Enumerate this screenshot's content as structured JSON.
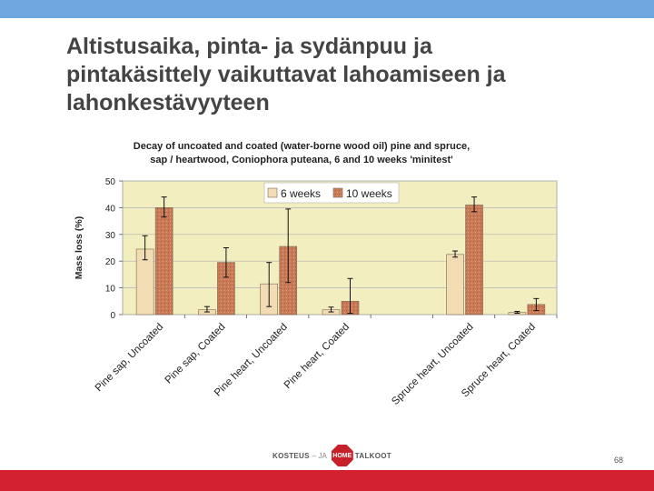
{
  "slide": {
    "title_lines": [
      "Altistusaika, pinta- ja sydänpuu ja",
      "pintakäsittely vaikuttavat lahoamiseen ja",
      "lahonkestävyyteen"
    ],
    "page_number": "68"
  },
  "logo": {
    "left_text": "KOSTEUS",
    "sep": "– JA",
    "badge_text": "HOME",
    "right_text": "TALKOOT"
  },
  "colors": {
    "top_bar": "#6fa8e0",
    "bottom_bar": "#d2202f",
    "plot_bg": "#f3eebf",
    "series_6": "#f1dcb4",
    "series_10": "#c97a57",
    "title_text": "#444444"
  },
  "chart_data": {
    "type": "bar",
    "title_lines": [
      "Decay of uncoated and coated (water-borne wood oil) pine and spruce,",
      "sap / heartwood,  Coniophora puteana, 6 and 10 weeks 'minitest'"
    ],
    "xlabel": "",
    "ylabel": "Mass loss (%)",
    "ylim": [
      0,
      50
    ],
    "yticks": [
      0,
      10,
      20,
      30,
      40,
      50
    ],
    "grid": true,
    "legend_position": "top-center",
    "categories": [
      "Pine sap, Uncoated",
      "Pine sap, Coated",
      "Pine heart, Uncoated",
      "Pine heart, Coated",
      "",
      "Spruce heart, Uncoated",
      "Spruce heart, Coated"
    ],
    "series": [
      {
        "name": "6 weeks",
        "values": [
          24.5,
          1.8,
          11.5,
          1.8,
          null,
          22.5,
          0.8
        ],
        "error_low": [
          20.5,
          1.0,
          3.0,
          1.0,
          null,
          21.5,
          0.5
        ],
        "error_high": [
          29.5,
          3.0,
          19.5,
          2.8,
          null,
          23.8,
          1.2
        ]
      },
      {
        "name": "10 weeks",
        "values": [
          40.0,
          19.5,
          25.5,
          5.0,
          null,
          41.0,
          3.8
        ],
        "error_low": [
          36.5,
          14.0,
          12.0,
          0.5,
          null,
          38.5,
          1.5
        ],
        "error_high": [
          44.0,
          25.0,
          39.5,
          13.5,
          null,
          44.0,
          6.0
        ]
      }
    ]
  }
}
